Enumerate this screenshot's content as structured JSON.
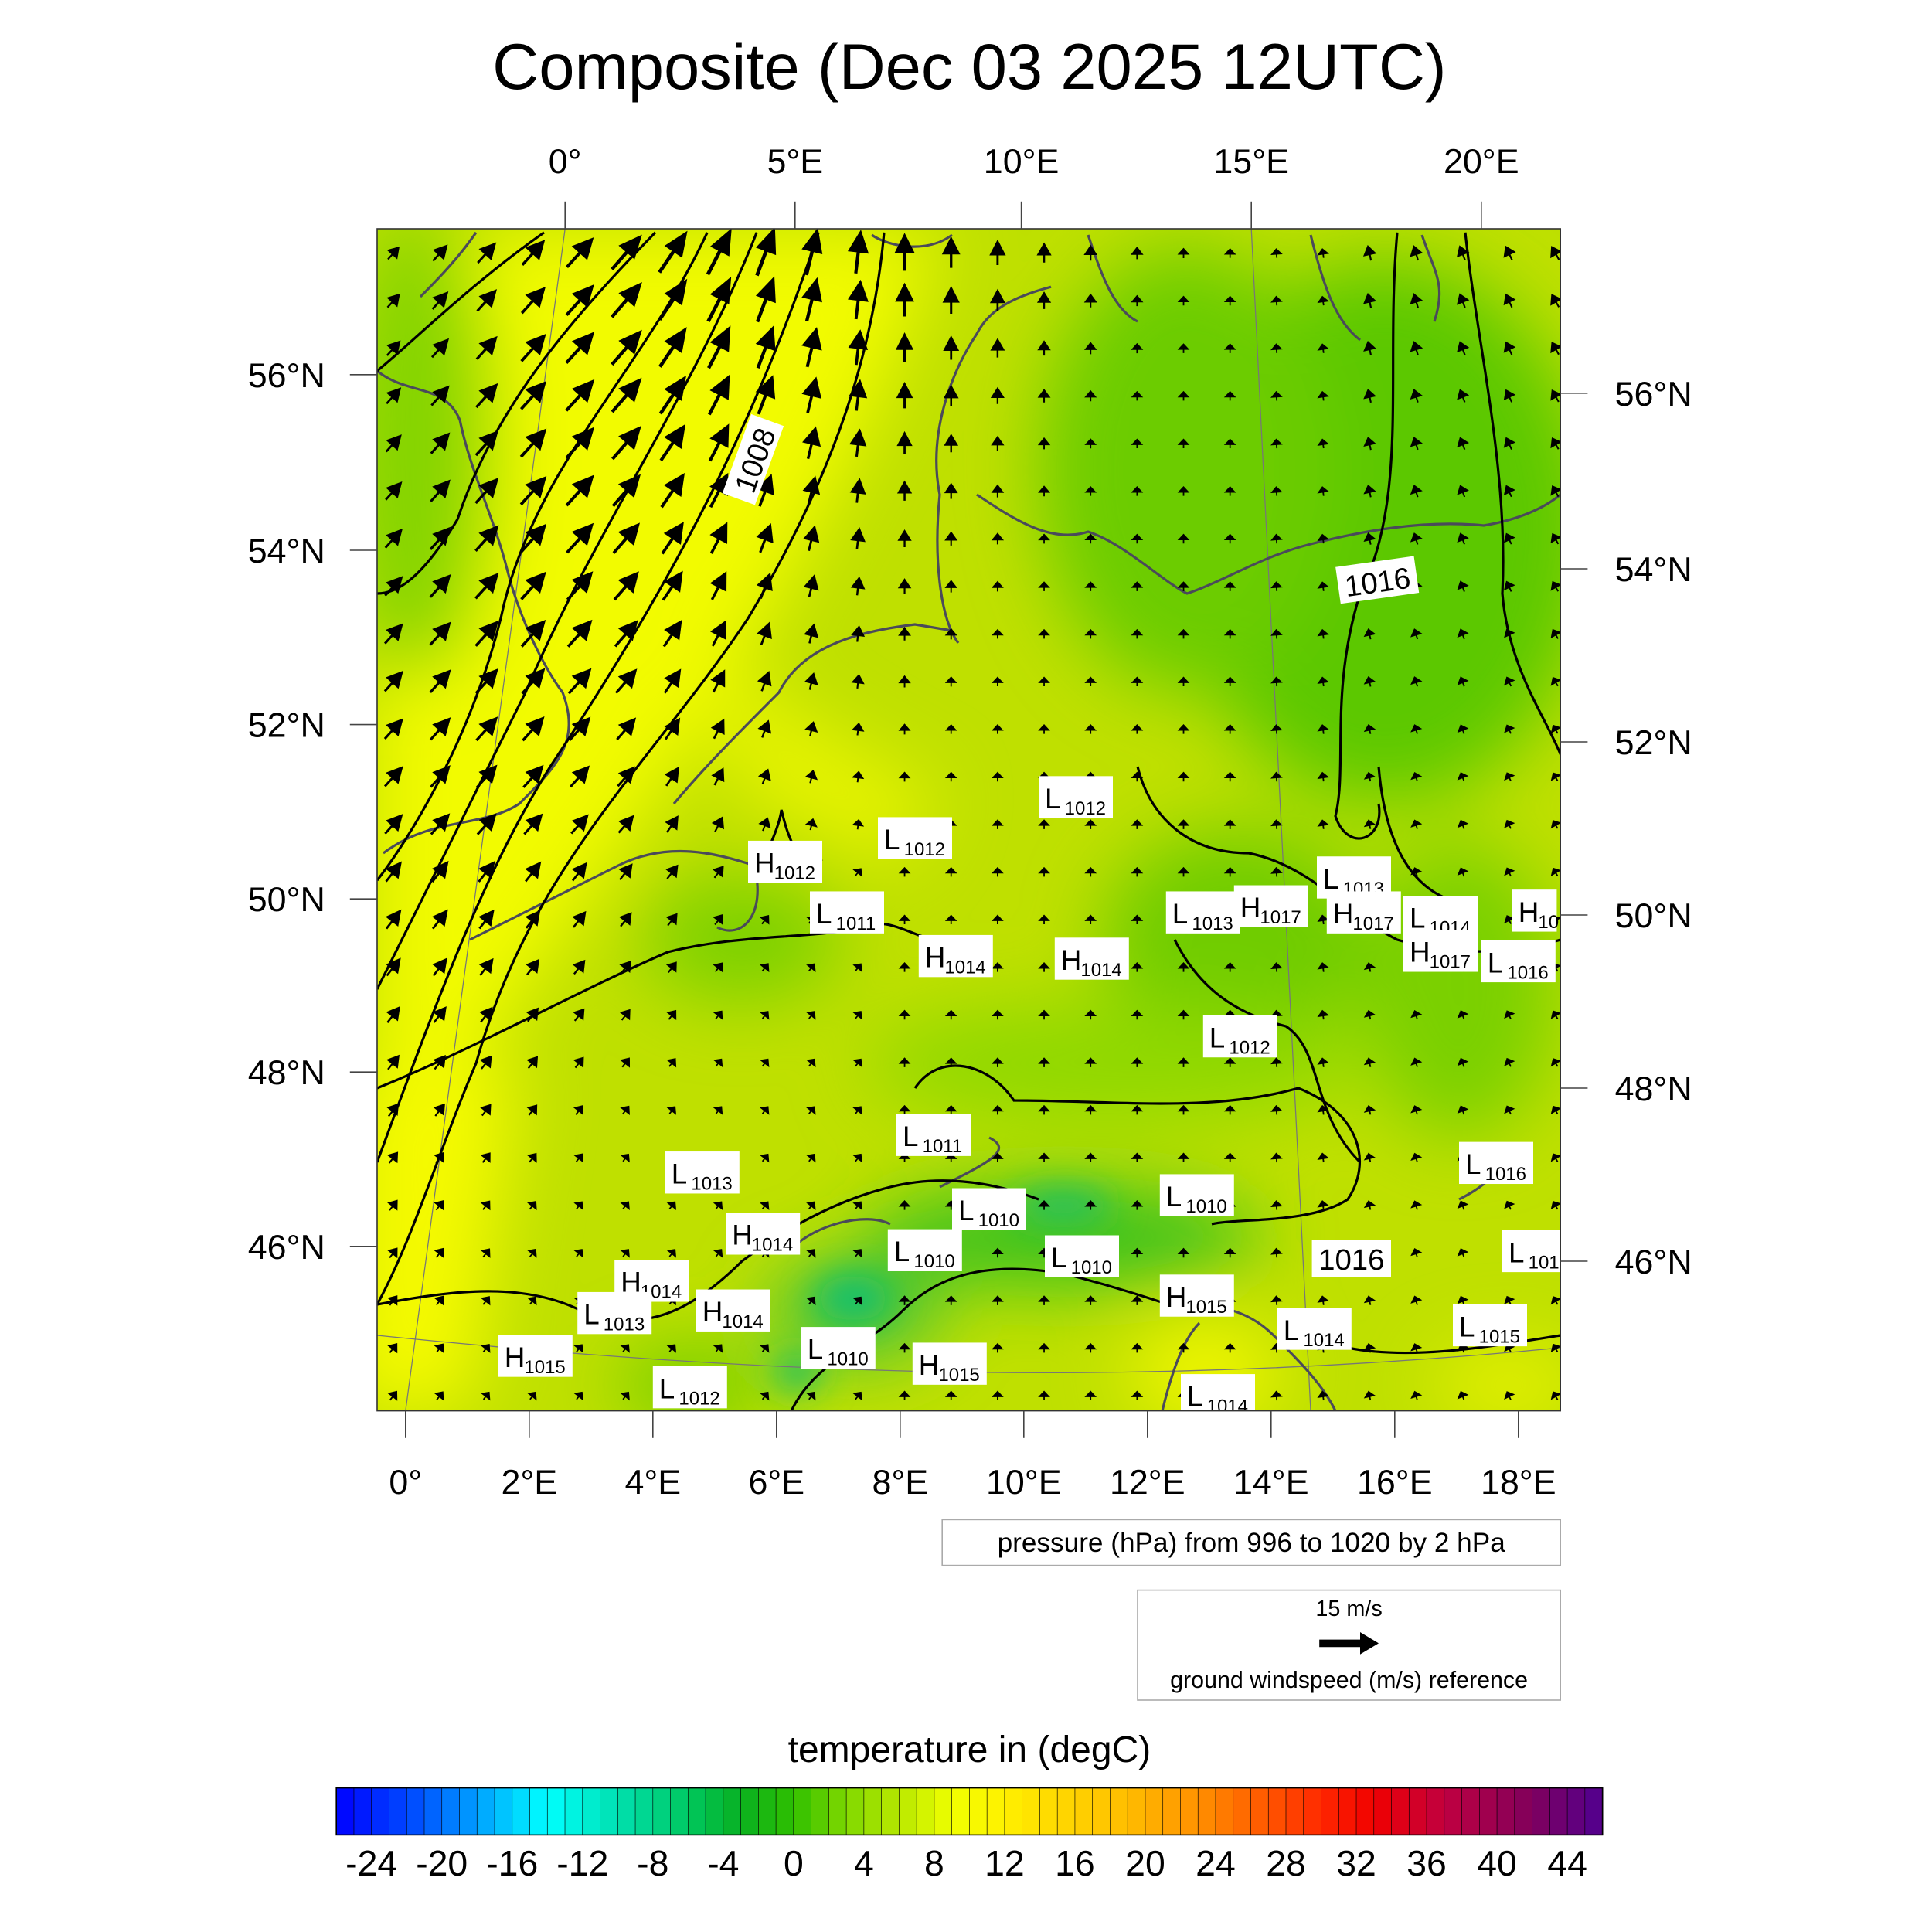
{
  "title": "Composite (Dec 03 2025 12UTC)",
  "top_lon_labels": [
    "0°",
    "5°E",
    "10°E",
    "15°E",
    "20°E"
  ],
  "bottom_lon_labels": [
    "0°",
    "2°E",
    "4°E",
    "6°E",
    "8°E",
    "10°E",
    "12°E",
    "14°E",
    "16°E",
    "18°E"
  ],
  "left_lat_labels": [
    "56°N",
    "54°N",
    "52°N",
    "50°N",
    "48°N",
    "46°N"
  ],
  "right_lat_labels": [
    "56°N",
    "54°N",
    "52°N",
    "50°N",
    "48°N",
    "46°N"
  ],
  "contour_labels": [
    "1008",
    "1016",
    "1016"
  ],
  "pressure_centers": [
    {
      "type": "L",
      "value": "1012",
      "lon": 10.34,
      "lat": 51.16
    },
    {
      "type": "L",
      "value": "1012",
      "lon": 7.74,
      "lat": 50.69
    },
    {
      "type": "H",
      "value": "1012",
      "lon": 5.64,
      "lat": 50.42
    },
    {
      "type": "L",
      "value": "1011",
      "lon": 6.64,
      "lat": 49.84
    },
    {
      "type": "H",
      "value": "1014",
      "lon": 8.4,
      "lat": 49.34
    },
    {
      "type": "H",
      "value": "1014",
      "lon": 10.6,
      "lat": 49.31
    },
    {
      "type": "L",
      "value": "1013",
      "lon": 12.4,
      "lat": 49.84
    },
    {
      "type": "H",
      "value": "1017",
      "lon": 13.5,
      "lat": 49.91
    },
    {
      "type": "L",
      "value": "1013",
      "lon": 14.84,
      "lat": 50.24
    },
    {
      "type": "L",
      "value": "1014",
      "lon": 16.24,
      "lat": 49.79
    },
    {
      "type": "H",
      "value": "1017",
      "lon": 15.0,
      "lat": 49.84
    },
    {
      "type": "H",
      "value": "10",
      "lon": 18.0,
      "lat": 49.86
    },
    {
      "type": "H",
      "value": "1017",
      "lon": 16.24,
      "lat": 49.4
    },
    {
      "type": "L",
      "value": "1016",
      "lon": 17.5,
      "lat": 49.28
    },
    {
      "type": "L",
      "value": "1012",
      "lon": 13.0,
      "lat": 48.42
    },
    {
      "type": "L",
      "value": "1011",
      "lon": 8.04,
      "lat": 47.29
    },
    {
      "type": "L",
      "value": "1013",
      "lon": 4.3,
      "lat": 46.86
    },
    {
      "type": "L",
      "value": "1010",
      "lon": 8.94,
      "lat": 46.44
    },
    {
      "type": "L",
      "value": "1010",
      "lon": 12.3,
      "lat": 46.6
    },
    {
      "type": "L",
      "value": "1016",
      "lon": 17.14,
      "lat": 46.97
    },
    {
      "type": "H",
      "value": "1014",
      "lon": 5.28,
      "lat": 46.16
    },
    {
      "type": "L",
      "value": "1010",
      "lon": 7.9,
      "lat": 45.97
    },
    {
      "type": "L",
      "value": "1010",
      "lon": 10.44,
      "lat": 45.9
    },
    {
      "type": "L",
      "value": "101",
      "lon": 17.84,
      "lat": 45.96
    },
    {
      "type": "H",
      "value": "1014",
      "lon": 3.48,
      "lat": 45.62
    },
    {
      "type": "H",
      "value": "1015",
      "lon": 12.3,
      "lat": 45.45
    },
    {
      "type": "L",
      "value": "1013",
      "lon": 2.88,
      "lat": 45.25
    },
    {
      "type": "H",
      "value": "1014",
      "lon": 4.8,
      "lat": 45.28
    },
    {
      "type": "L",
      "value": "1014",
      "lon": 14.2,
      "lat": 45.07
    },
    {
      "type": "L",
      "value": "1015",
      "lon": 17.04,
      "lat": 45.11
    },
    {
      "type": "H",
      "value": "1015",
      "lon": 1.6,
      "lat": 44.76
    },
    {
      "type": "L",
      "value": "1010",
      "lon": 6.5,
      "lat": 44.85
    },
    {
      "type": "H",
      "value": "1015",
      "lon": 8.3,
      "lat": 44.67
    },
    {
      "type": "L",
      "value": "1012",
      "lon": 4.1,
      "lat": 44.4
    },
    {
      "type": "L",
      "value": "1014",
      "lon": 12.64,
      "lat": 44.31
    }
  ],
  "pressure_legend": "pressure (hPa) from 996 to 1020 by 2 hPa",
  "wind_reference": {
    "speed_label": "15 m/s",
    "caption": "ground windspeed (m/s) reference"
  },
  "colorbar": {
    "title": "temperature in (degC)",
    "labels": [
      "-24",
      "-20",
      "-16",
      "-12",
      "-8",
      "-4",
      "0",
      "4",
      "8",
      "12",
      "16",
      "20",
      "24",
      "28",
      "32",
      "36",
      "40",
      "44"
    ],
    "min": -26,
    "max": 46,
    "step": 1,
    "color_stops": [
      [
        -26,
        "#0000ff"
      ],
      [
        -21,
        "#0058ff"
      ],
      [
        -17,
        "#00b8ff"
      ],
      [
        -14,
        "#00ffff"
      ],
      [
        -10,
        "#00e0b0"
      ],
      [
        -6,
        "#00c860"
      ],
      [
        -3,
        "#08b020"
      ],
      [
        0,
        "#30c000"
      ],
      [
        3,
        "#80d800"
      ],
      [
        6,
        "#b8e800"
      ],
      [
        9,
        "#f0ff00"
      ],
      [
        12,
        "#fff000"
      ],
      [
        15,
        "#ffd800"
      ],
      [
        19,
        "#ffbc00"
      ],
      [
        23,
        "#ff9000"
      ],
      [
        26,
        "#ff6400"
      ],
      [
        30,
        "#ff2800"
      ],
      [
        33,
        "#f00000"
      ],
      [
        37,
        "#c00040"
      ],
      [
        42,
        "#80005c"
      ],
      [
        46,
        "#500090"
      ]
    ]
  }
}
